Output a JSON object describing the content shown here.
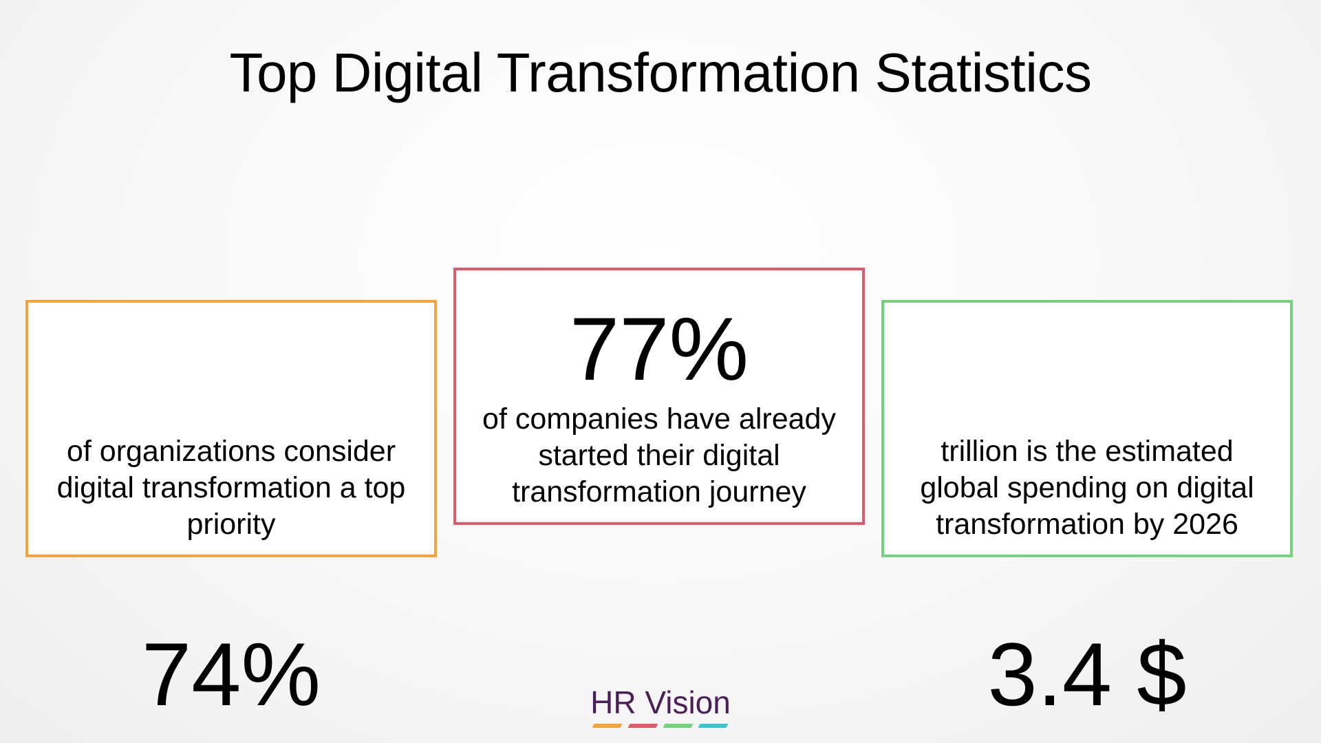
{
  "title": "Top Digital Transformation Statistics",
  "cards": [
    {
      "value": "74%",
      "description": "of organizations consider digital transformation a top priority",
      "border_color": "#f6a43a"
    },
    {
      "value": "77%",
      "description": "of companies have already started their digital transformation journey",
      "border_color": "#e05a6b"
    },
    {
      "value": "3.4 $",
      "description": "trillion is the estimated global spending on digital transformation by 2026",
      "border_color": "#72d27e"
    }
  ],
  "logo": {
    "text": "HR Vision",
    "text_color": "#4a1e57",
    "bar_colors": [
      "#f6a43a",
      "#e05a6b",
      "#72d27e",
      "#3cc4cf"
    ]
  }
}
